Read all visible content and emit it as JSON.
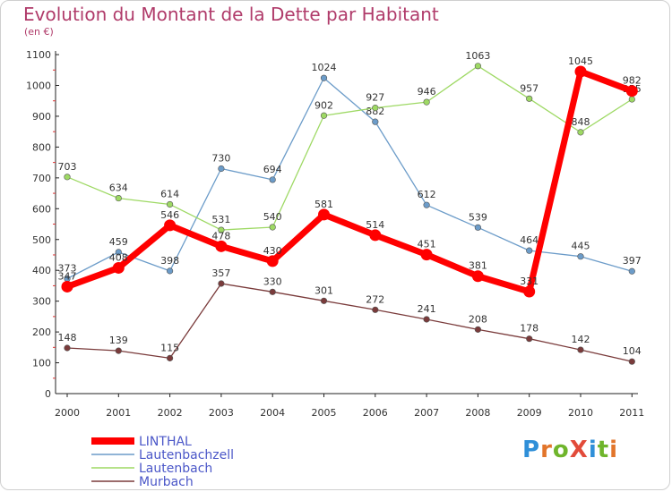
{
  "header": {
    "title": "Evolution du Montant de la Dette par Habitant",
    "unit": "(en €)"
  },
  "logo": {
    "text": "ProXiti",
    "letters": [
      "P",
      "r",
      "o",
      "X",
      "i",
      "t",
      "i"
    ],
    "colors": [
      "#2f8fd8",
      "#e2752b",
      "#6fb52c",
      "#e24b3a",
      "#2f8fd8",
      "#6fb52c",
      "#e2752b"
    ]
  },
  "chart_data": {
    "type": "line",
    "x": [
      "2000",
      "2001",
      "2002",
      "2003",
      "2004",
      "2005",
      "2006",
      "2007",
      "2008",
      "2009",
      "2010",
      "2011"
    ],
    "ylim": [
      0,
      1100
    ],
    "yticks": [
      0,
      100,
      200,
      300,
      400,
      500,
      600,
      700,
      800,
      900,
      1000,
      1100
    ],
    "grid": false,
    "legend_position": "bottom-left",
    "series": [
      {
        "name": "Lautenbachzell",
        "color": "#6c9cc9",
        "values": [
          373,
          459,
          398,
          730,
          694,
          1024,
          882,
          612,
          539,
          464,
          445,
          397
        ]
      },
      {
        "name": "Lautenbach",
        "color": "#9ed964",
        "values": [
          703,
          634,
          614,
          531,
          540,
          902,
          927,
          946,
          1063,
          957,
          848,
          955
        ]
      },
      {
        "name": "Murbach",
        "color": "#7a3b3b",
        "values": [
          148,
          139,
          115,
          357,
          330,
          301,
          272,
          241,
          208,
          178,
          142,
          104
        ]
      },
      {
        "name": "LINTHAL",
        "color": "#ff0000",
        "values": [
          347,
          408,
          546,
          478,
          430,
          581,
          514,
          451,
          381,
          331,
          1045,
          982
        ]
      }
    ],
    "legend_order": [
      "LINTHAL",
      "Lautenbachzell",
      "Lautenbach",
      "Murbach"
    ]
  }
}
